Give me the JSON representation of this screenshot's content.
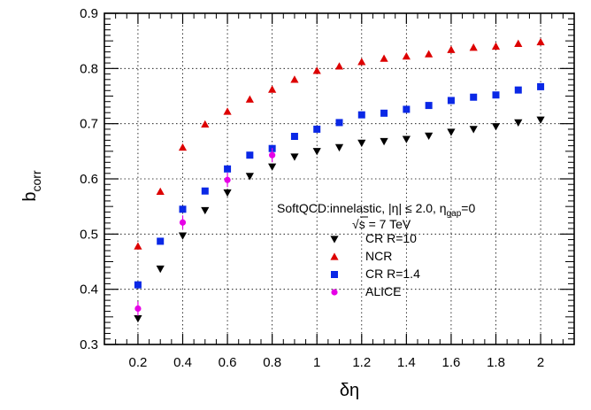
{
  "chart_data": {
    "type": "scatter",
    "title": "",
    "xlabel": "δη",
    "ylabel_main": "b",
    "ylabel_sub": "corr",
    "xlim": [
      0.05,
      2.15
    ],
    "ylim": [
      0.3,
      0.9
    ],
    "grid": true,
    "legend_position": "center-right",
    "x_ticks": [
      0.2,
      0.4,
      0.6,
      0.8,
      1,
      1.2,
      1.4,
      1.6,
      1.8,
      2
    ],
    "x_tick_labels": [
      "0.2",
      "0.4",
      "0.6",
      "0.8",
      "1",
      "1.2",
      "1.4",
      "1.6",
      "1.8",
      "2"
    ],
    "y_ticks": [
      0.3,
      0.4,
      0.5,
      0.6,
      0.7,
      0.8,
      0.9
    ],
    "y_tick_labels": [
      "0.3",
      "0.4",
      "0.5",
      "0.6",
      "0.7",
      "0.8",
      "0.9"
    ],
    "annotation": {
      "line1_a": "SoftQCD:innelastic, |η| ≤ 2.0, η",
      "line1_sub": "gap",
      "line1_b": "=0",
      "line2_root": "√",
      "line2_a": "s = 7 TeV"
    },
    "series": [
      {
        "name": "CR R=10",
        "marker": "triangle-down",
        "color": "#000000",
        "x": [
          0.2,
          0.3,
          0.4,
          0.5,
          0.6,
          0.7,
          0.8,
          0.9,
          1.0,
          1.1,
          1.2,
          1.3,
          1.4,
          1.5,
          1.6,
          1.7,
          1.8,
          1.9,
          2.0
        ],
        "y": [
          0.347,
          0.437,
          0.497,
          0.543,
          0.575,
          0.605,
          0.622,
          0.64,
          0.65,
          0.657,
          0.665,
          0.668,
          0.672,
          0.678,
          0.685,
          0.69,
          0.695,
          0.702,
          0.707
        ]
      },
      {
        "name": "NCR",
        "marker": "triangle-up",
        "color": "#dd0000",
        "x": [
          0.2,
          0.3,
          0.4,
          0.5,
          0.6,
          0.7,
          0.8,
          0.9,
          1.0,
          1.1,
          1.2,
          1.3,
          1.4,
          1.5,
          1.6,
          1.7,
          1.8,
          1.9,
          2.0
        ],
        "y": [
          0.478,
          0.577,
          0.657,
          0.699,
          0.722,
          0.744,
          0.762,
          0.78,
          0.796,
          0.804,
          0.812,
          0.818,
          0.822,
          0.826,
          0.834,
          0.838,
          0.84,
          0.845,
          0.848
        ]
      },
      {
        "name": "CR R=1.4",
        "marker": "square",
        "color": "#0a28e6",
        "x": [
          0.2,
          0.3,
          0.4,
          0.5,
          0.6,
          0.7,
          0.8,
          0.9,
          1.0,
          1.1,
          1.2,
          1.3,
          1.4,
          1.5,
          1.6,
          1.7,
          1.8,
          1.9,
          2.0
        ],
        "y": [
          0.408,
          0.487,
          0.545,
          0.578,
          0.618,
          0.643,
          0.655,
          0.677,
          0.69,
          0.702,
          0.716,
          0.719,
          0.726,
          0.733,
          0.742,
          0.748,
          0.752,
          0.761,
          0.767
        ]
      },
      {
        "name": "ALICE",
        "marker": "circle",
        "color": "#e600e6",
        "x": [
          0.2,
          0.4,
          0.6,
          0.8
        ],
        "y": [
          0.365,
          0.521,
          0.598,
          0.643
        ]
      }
    ]
  }
}
